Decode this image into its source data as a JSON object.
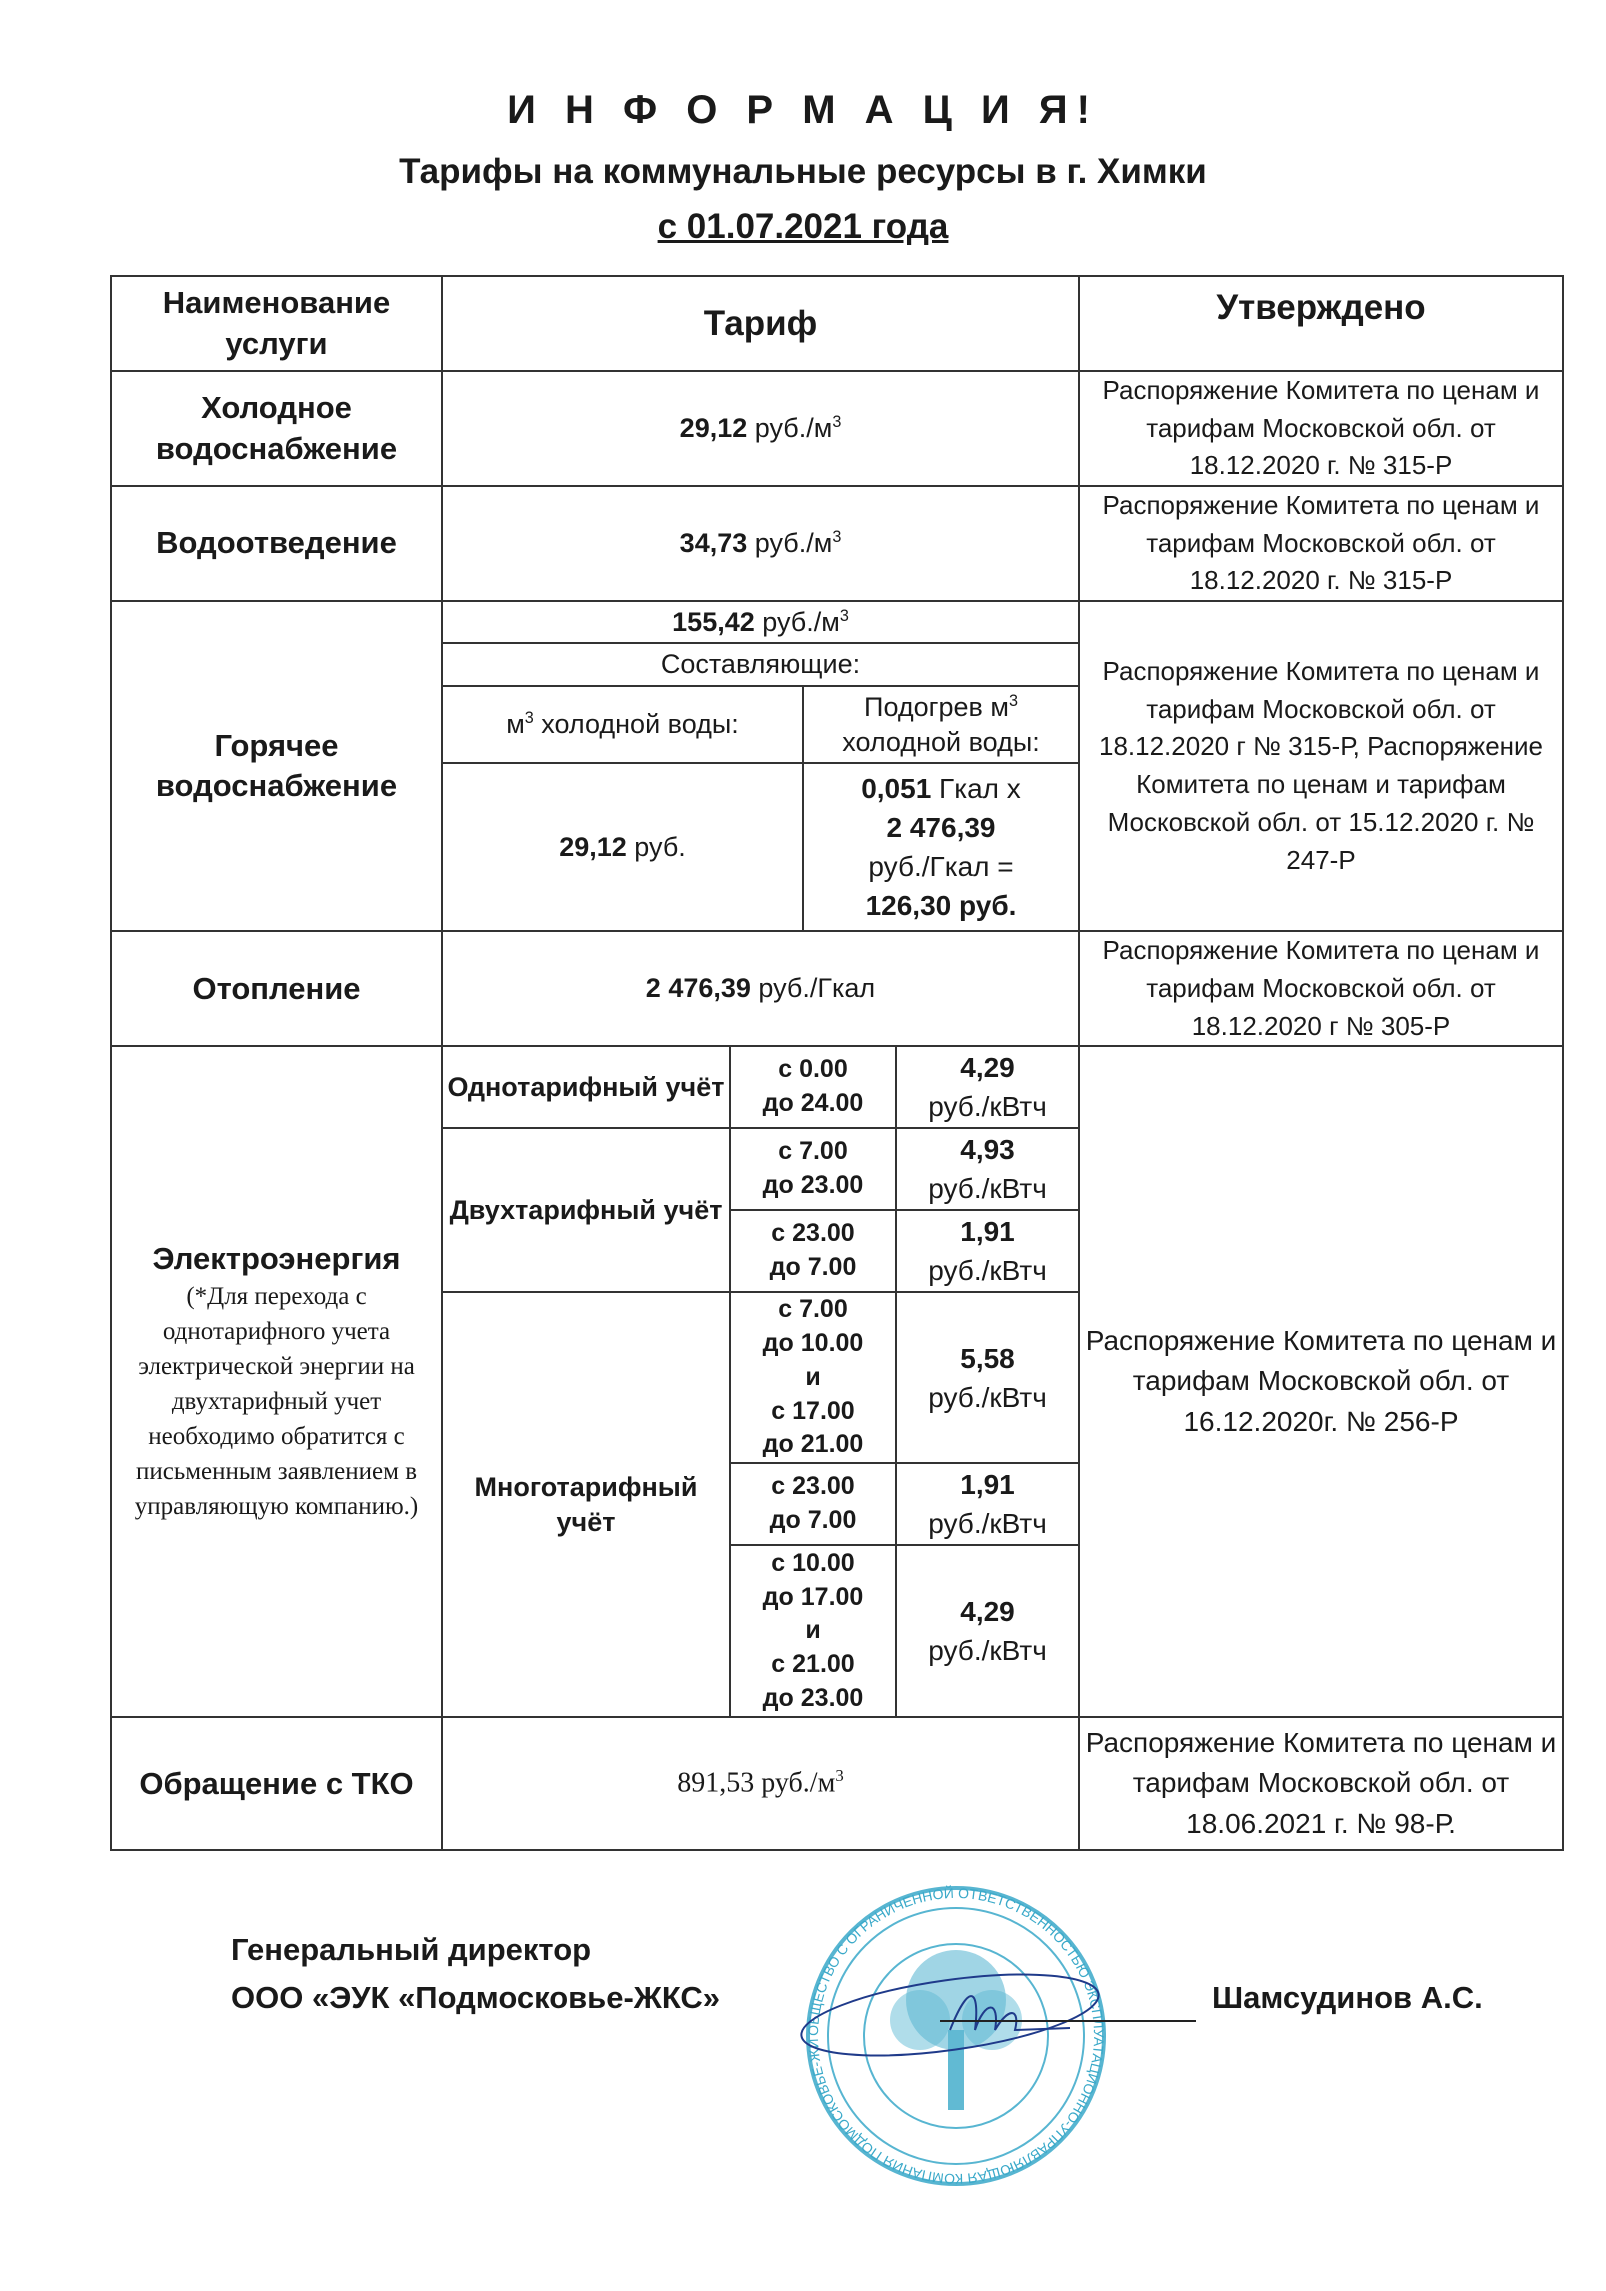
{
  "header": {
    "title": "И Н Ф О Р М А Ц И Я!",
    "subtitle": "Тарифы на коммунальные ресурсы в г. Химки",
    "date": "с  01.07.2021 года"
  },
  "table": {
    "columns": {
      "service": "Наименование услуги",
      "tariff": "Тариф",
      "approved": "Утверждено"
    },
    "cold_water": {
      "name": "Холодное водоснабжение",
      "value": "29,12",
      "unit": " руб./м",
      "approved": "Распоряжение Комитета по ценам и тарифам Московской обл. от 18.12.2020 г. № 315-Р"
    },
    "drainage": {
      "name": "Водоотведение",
      "value": "34,73",
      "unit": " руб./м",
      "approved": "Распоряжение Комитета по ценам и тарифам Московской обл. от 18.12.2020 г. № 315-Р"
    },
    "hot_water": {
      "name": "Горячее водоснабжение",
      "total_value": "155,42",
      "total_unit": " руб./м",
      "components_label": "Составляющие:",
      "cold_label_prefix": "м",
      "cold_label": " холодной воды:",
      "heat_label": "Подогрев м",
      "heat_label2": " холодной воды:",
      "cold_value": "29,12",
      "cold_unit": " руб.",
      "heat_gcal": "0,051",
      "heat_gcal_unit": " Гкал х",
      "heat_rate": "2 476,39",
      "heat_rate_unit": "руб./Гкал =",
      "heat_result": "126,30 руб.",
      "approved": "Распоряжение Комитета по ценам и тарифам Московской обл. от 18.12.2020 г № 315-Р, Распоряжение Комитета по ценам и тарифам Московской обл. от 15.12.2020 г. № 247-Р"
    },
    "heating": {
      "name": "Отопление",
      "value": "2 476,39",
      "unit": " руб./Гкал",
      "approved": "Распоряжение Комитета по ценам и тарифам Московской обл. от 18.12.2020 г № 305-Р"
    },
    "electricity": {
      "name": "Электроэнергия",
      "note": "(*Для перехода  с однотарифного учета электрической энергии на двухтарифный  учет необходимо обратится с письменным заявлением в управляющую компанию.)",
      "unit": "руб./кВтч",
      "single": {
        "label": "Однотарифный учёт",
        "time": [
          "с 0.00",
          "до 24.00"
        ],
        "price": "4,29"
      },
      "dual": {
        "label": "Двухтарифный учёт",
        "rows": [
          {
            "time": [
              "с 7.00",
              "до 23.00"
            ],
            "price": "4,93"
          },
          {
            "time": [
              "с 23.00",
              "до 7.00"
            ],
            "price": "1,91"
          }
        ]
      },
      "multi": {
        "label": "Многотарифный учёт",
        "rows": [
          {
            "time": [
              "с 7.00",
              "до 10.00",
              "и",
              "с 17.00",
              "до 21.00"
            ],
            "price": "5,58"
          },
          {
            "time": [
              "с 23.00",
              "до 7.00"
            ],
            "price": "1,91"
          },
          {
            "time": [
              "с 10.00",
              "до 17.00",
              "и",
              "с 21.00",
              "до 23.00"
            ],
            "price": "4,29"
          }
        ]
      },
      "approved": "Распоряжение Комитета по ценам и тарифам Московской обл. от 16.12.2020г. № 256-Р"
    },
    "waste": {
      "name": "Обращение с ТКО",
      "value": "891,53 руб./м",
      "approved": "Распоряжение Комитета по ценам и тарифам Московской обл. от 18.06.2021 г. № 98-Р."
    }
  },
  "signature": {
    "position": "Генеральный директор",
    "company": "ООО «ЭУК «Подмосковье-ЖКС»",
    "name": "Шамсудинов А.С."
  },
  "stamp": {
    "text": "ОБЩЕСТВО С ОГРАНИЧЕННОЙ ОТВЕТСТВЕННОСТЬЮ ЭКСПЛУАТАЦИОННО-УПРАВЛЯЮЩАЯ КОМПАНИЯ ПОДМОСКОВЬЕ-ЖИЛКОМСЕРВИС",
    "color": "#3aa9c9"
  }
}
